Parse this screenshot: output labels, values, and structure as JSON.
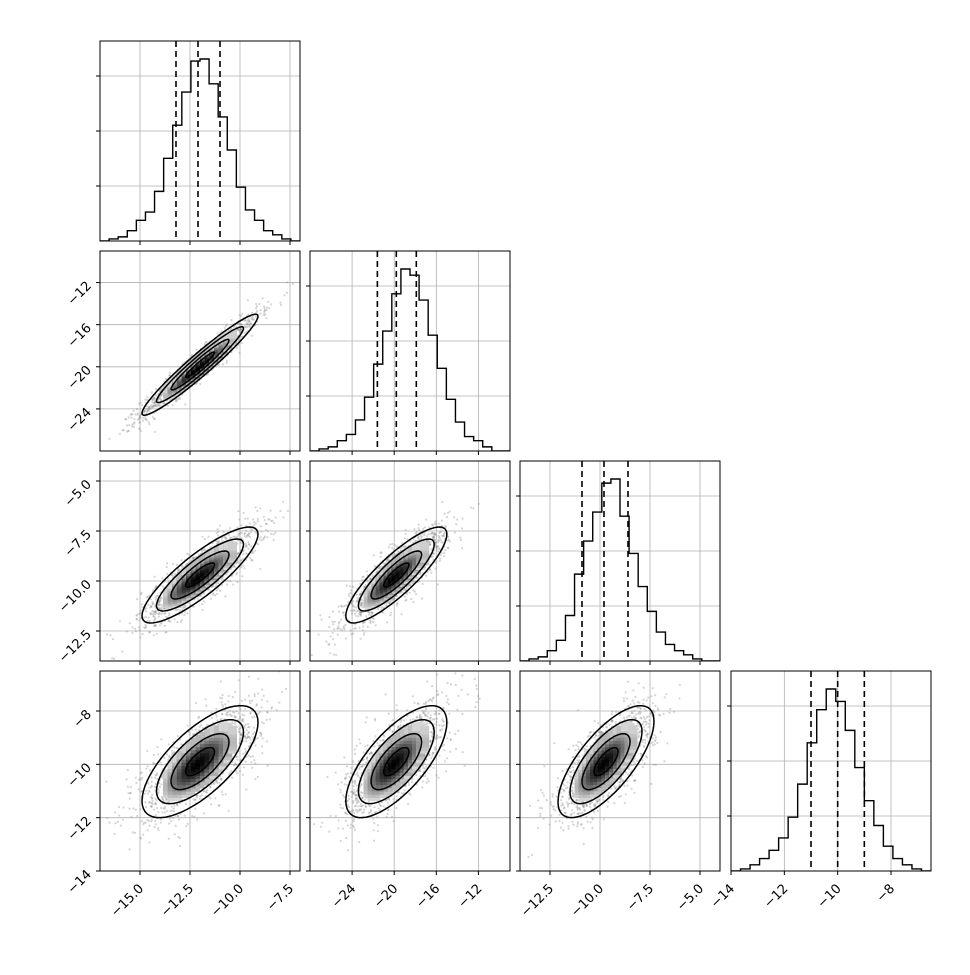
{
  "chart_data": {
    "type": "corner",
    "parameters": 4,
    "grid": true,
    "quantile_lines": "dashed",
    "colors": {
      "line": "#000000",
      "grid": "#b0b0b0",
      "points": "#888888",
      "frame": "#000000"
    },
    "parameter_ranges": [
      [
        -17.0,
        -7.0
      ],
      [
        -28.0,
        -9.0
      ],
      [
        -14.0,
        -4.0
      ],
      [
        -14.0,
        -6.5
      ]
    ],
    "x_ticks": [
      [
        "−15.0",
        "−12.5",
        "−10.0",
        "−7.5"
      ],
      [
        "−24",
        "−20",
        "−16",
        "−12"
      ],
      [
        "−12.5",
        "−10.0",
        "−7.5",
        "−5.0"
      ],
      [
        "−14",
        "−12",
        "−10",
        "−8"
      ]
    ],
    "x_tick_values": [
      [
        -15.0,
        -12.5,
        -10.0,
        -7.5
      ],
      [
        -24,
        -20,
        -16,
        -12
      ],
      [
        -12.5,
        -10.0,
        -7.5,
        -5.0
      ],
      [
        -14,
        -12,
        -10,
        -8
      ]
    ],
    "y_ticks": {
      "row1": [
        "−12",
        "−16",
        "−20",
        "−24"
      ],
      "row2": [
        "−5.0",
        "−7.5",
        "−10.0",
        "−12.5"
      ],
      "row3": [
        "−8",
        "−10",
        "−12",
        "−14"
      ]
    },
    "y_tick_values": {
      "row1": [
        -12,
        -16,
        -20,
        -24
      ],
      "row2": [
        -5.0,
        -7.5,
        -10.0,
        -12.5
      ],
      "row3": [
        -8,
        -10,
        -12,
        -14
      ]
    },
    "quantiles": [
      [
        -13.2,
        -12.1,
        -11.0
      ],
      [
        -21.6,
        -19.8,
        -17.9
      ],
      [
        -10.9,
        -9.8,
        -8.6
      ],
      [
        -11.0,
        -10.0,
        -9.0
      ]
    ],
    "histograms": [
      {
        "bins": [
          -17.0,
          -7.0
        ],
        "counts": [
          0,
          1,
          2,
          5,
          10,
          14,
          24,
          40,
          56,
          72,
          87,
          88,
          76,
          60,
          44,
          26,
          15,
          10,
          5,
          3,
          1,
          0
        ]
      },
      {
        "bins": [
          -28.0,
          -9.0
        ],
        "counts": [
          0,
          1,
          2,
          5,
          8,
          15,
          26,
          42,
          58,
          76,
          88,
          85,
          73,
          56,
          40,
          25,
          14,
          7,
          5,
          2,
          0,
          0
        ]
      },
      {
        "bins": [
          -14.0,
          -4.0
        ],
        "counts": [
          0,
          1,
          2,
          5,
          10,
          22,
          42,
          58,
          72,
          86,
          88,
          70,
          52,
          36,
          24,
          14,
          8,
          5,
          3,
          1,
          0,
          0
        ]
      },
      {
        "bins": [
          -14.0,
          -6.5
        ],
        "counts": [
          0,
          1,
          3,
          6,
          10,
          16,
          26,
          42,
          62,
          78,
          88,
          82,
          68,
          50,
          34,
          22,
          12,
          6,
          3,
          1,
          0
        ]
      }
    ],
    "pairs": [
      {
        "row": 1,
        "col": 0,
        "mean": [
          -12.0,
          -19.8
        ],
        "std": [
          1.45,
          2.4
        ],
        "corr": 0.96
      },
      {
        "row": 2,
        "col": 0,
        "mean": [
          -12.0,
          -9.7
        ],
        "std": [
          1.45,
          1.2
        ],
        "corr": 0.85
      },
      {
        "row": 2,
        "col": 1,
        "mean": [
          -19.8,
          -9.7
        ],
        "std": [
          2.4,
          1.2
        ],
        "corr": 0.85
      },
      {
        "row": 3,
        "col": 0,
        "mean": [
          -12.0,
          -9.9
        ],
        "std": [
          1.45,
          1.05
        ],
        "corr": 0.7
      },
      {
        "row": 3,
        "col": 1,
        "mean": [
          -19.8,
          -9.9
        ],
        "std": [
          2.4,
          1.05
        ],
        "corr": 0.7
      },
      {
        "row": 3,
        "col": 2,
        "mean": [
          -9.7,
          -9.9
        ],
        "std": [
          1.2,
          1.05
        ],
        "corr": 0.72
      }
    ],
    "contour_levels_sigma": [
      0.5,
      1.0,
      1.5,
      2.0
    ]
  }
}
